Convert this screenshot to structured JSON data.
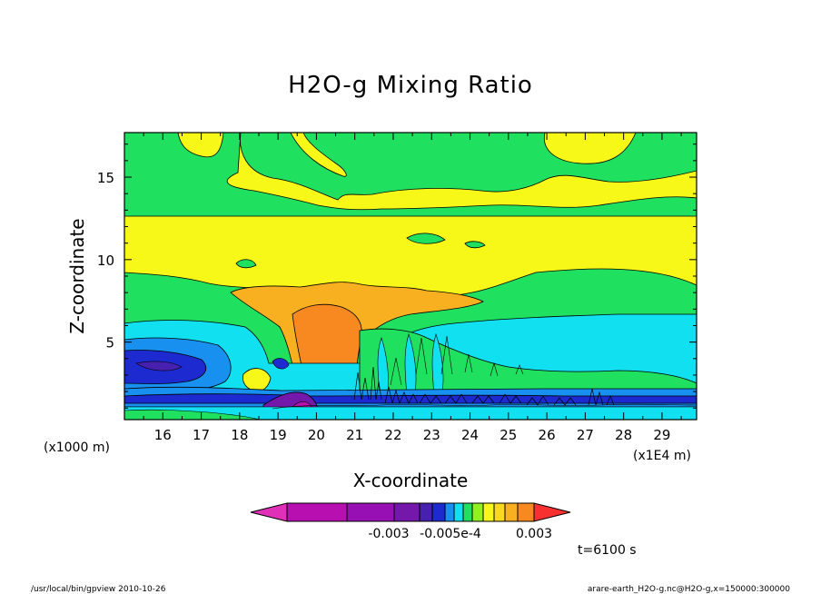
{
  "chart_data": {
    "type": "heatmap",
    "title": "H2O-g Mixing Ratio",
    "xlabel": "X-coordinate",
    "ylabel": "Z-coordinate",
    "x_unit_left": "(x1000 m)",
    "x_unit_right": "(x1E4 m)",
    "x_ticks": [
      "16",
      "17",
      "18",
      "19",
      "20",
      "21",
      "22",
      "23",
      "24",
      "25",
      "26",
      "27",
      "28",
      "29"
    ],
    "y_ticks": [
      "5",
      "10",
      "15"
    ],
    "xlim": [
      15.0,
      29.9
    ],
    "ylim": [
      0.3,
      17.7
    ],
    "colorbar": {
      "labels": [
        "-0.003",
        "-0.005e-4",
        "0.003"
      ],
      "colors": [
        "#e030b8",
        "#b810b0",
        "#9610b4",
        "#7418ac",
        "#4820b0",
        "#1c2ad0",
        "#1890f0",
        "#10e0f0",
        "#20e060",
        "#90f020",
        "#f8f818",
        "#f8d820",
        "#f8b020",
        "#f88820",
        "#f83030"
      ]
    },
    "time_label": "t=6100 s",
    "footer_left": "/usr/local/bin/gpview  2010-10-26",
    "footer_right": "arare-earth_H2O-g.nc@H2O-g,x=150000:300000"
  }
}
